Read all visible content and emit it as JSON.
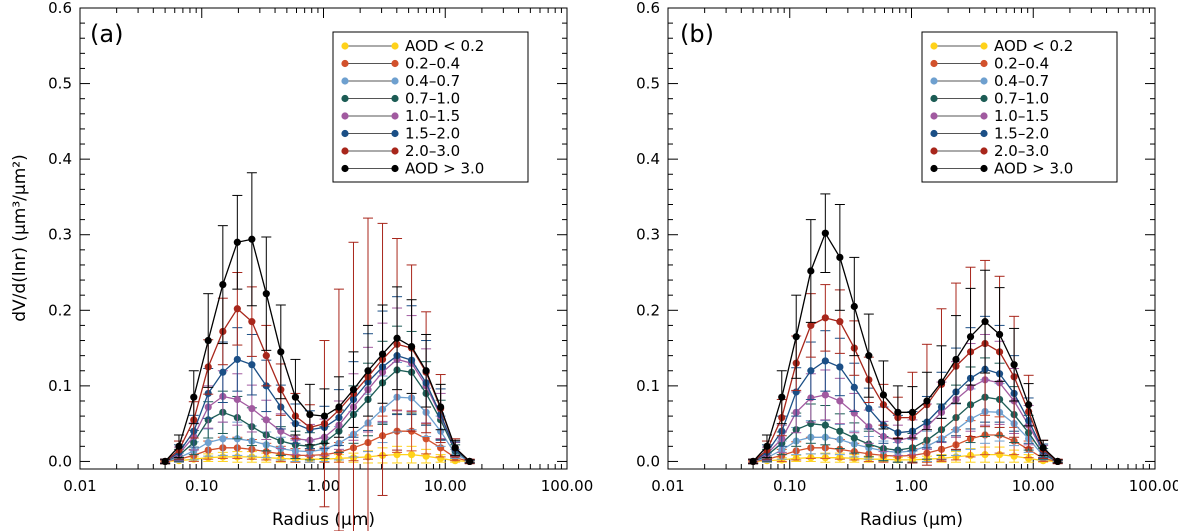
{
  "ylabel": "dV/d(lnr) (μm³/μm²)",
  "chart_data": [
    {
      "type": "line",
      "panel_label": "(a)",
      "xlabel": "Radius (μm)",
      "ylabel": "dV/d(lnr) (μm³/μm²)",
      "x_scale": "log",
      "xlim": [
        0.01,
        100
      ],
      "ylim": [
        -0.01,
        0.6
      ],
      "x_ticks": [
        "0.01",
        "0.10",
        "1.00",
        "10.00",
        "100.00"
      ],
      "y_ticks": [
        "0.0",
        "0.1",
        "0.2",
        "0.3",
        "0.4",
        "0.5",
        "0.6"
      ],
      "legend_position": "top-right",
      "x": [
        0.05,
        0.065,
        0.086,
        0.113,
        0.149,
        0.196,
        0.258,
        0.339,
        0.446,
        0.588,
        0.773,
        1.018,
        1.339,
        1.763,
        2.32,
        3.054,
        4.019,
        5.29,
        6.963,
        9.165,
        12.06,
        15.88
      ],
      "series": [
        {
          "name": "AOD < 0.2",
          "color": "#FFD21A",
          "values": [
            0.0,
            0.001,
            0.003,
            0.005,
            0.006,
            0.006,
            0.006,
            0.005,
            0.004,
            0.003,
            0.003,
            0.003,
            0.004,
            0.005,
            0.006,
            0.008,
            0.009,
            0.009,
            0.007,
            0.004,
            0.001,
            0.0
          ],
          "err": [
            0.001,
            0.002,
            0.003,
            0.005,
            0.006,
            0.007,
            0.007,
            0.006,
            0.005,
            0.004,
            0.004,
            0.004,
            0.005,
            0.006,
            0.008,
            0.01,
            0.011,
            0.011,
            0.009,
            0.005,
            0.002,
            0.001
          ]
        },
        {
          "name": "0.2–0.4",
          "color": "#D2512C",
          "values": [
            0.0,
            0.003,
            0.008,
            0.015,
            0.018,
            0.018,
            0.016,
            0.013,
            0.01,
            0.008,
            0.008,
            0.009,
            0.012,
            0.018,
            0.025,
            0.034,
            0.04,
            0.04,
            0.03,
            0.018,
            0.005,
            0.0
          ],
          "err": [
            0.001,
            0.004,
            0.008,
            0.012,
            0.014,
            0.014,
            0.013,
            0.011,
            0.01,
            0.009,
            0.009,
            0.01,
            0.013,
            0.017,
            0.022,
            0.026,
            0.028,
            0.026,
            0.02,
            0.012,
            0.004,
            0.001
          ]
        },
        {
          "name": "0.4–0.7",
          "color": "#6EA0CF",
          "values": [
            0.0,
            0.005,
            0.014,
            0.025,
            0.03,
            0.03,
            0.027,
            0.022,
            0.017,
            0.014,
            0.013,
            0.016,
            0.024,
            0.036,
            0.051,
            0.069,
            0.085,
            0.084,
            0.065,
            0.04,
            0.01,
            0.0
          ],
          "err": [
            0.002,
            0.006,
            0.012,
            0.018,
            0.022,
            0.022,
            0.02,
            0.017,
            0.015,
            0.014,
            0.014,
            0.016,
            0.022,
            0.03,
            0.038,
            0.044,
            0.046,
            0.042,
            0.032,
            0.02,
            0.006,
            0.001
          ]
        },
        {
          "name": "0.7–1.0",
          "color": "#1C5C55",
          "values": [
            0.0,
            0.008,
            0.025,
            0.055,
            0.065,
            0.058,
            0.046,
            0.035,
            0.027,
            0.022,
            0.02,
            0.025,
            0.04,
            0.062,
            0.082,
            0.104,
            0.121,
            0.118,
            0.09,
            0.055,
            0.014,
            0.0
          ],
          "err": [
            0.002,
            0.008,
            0.016,
            0.024,
            0.028,
            0.028,
            0.025,
            0.021,
            0.019,
            0.018,
            0.018,
            0.021,
            0.028,
            0.038,
            0.048,
            0.055,
            0.058,
            0.054,
            0.042,
            0.026,
            0.008,
            0.002
          ]
        },
        {
          "name": "1.0–1.5",
          "color": "#A15AA0",
          "values": [
            0.0,
            0.01,
            0.033,
            0.072,
            0.086,
            0.082,
            0.07,
            0.055,
            0.04,
            0.03,
            0.028,
            0.032,
            0.048,
            0.072,
            0.095,
            0.118,
            0.135,
            0.13,
            0.1,
            0.06,
            0.016,
            0.0
          ],
          "err": [
            0.002,
            0.009,
            0.018,
            0.028,
            0.034,
            0.034,
            0.031,
            0.026,
            0.023,
            0.021,
            0.021,
            0.024,
            0.032,
            0.044,
            0.056,
            0.065,
            0.068,
            0.063,
            0.049,
            0.03,
            0.009,
            0.002
          ]
        },
        {
          "name": "1.5–2.0",
          "color": "#1B4F86",
          "values": [
            0.0,
            0.012,
            0.04,
            0.09,
            0.118,
            0.135,
            0.128,
            0.1,
            0.072,
            0.05,
            0.042,
            0.045,
            0.058,
            0.082,
            0.105,
            0.125,
            0.14,
            0.134,
            0.104,
            0.062,
            0.016,
            0.0
          ],
          "err": [
            0.003,
            0.01,
            0.021,
            0.033,
            0.04,
            0.042,
            0.04,
            0.034,
            0.029,
            0.026,
            0.025,
            0.028,
            0.037,
            0.05,
            0.064,
            0.074,
            0.078,
            0.072,
            0.056,
            0.034,
            0.01,
            0.002
          ]
        },
        {
          "name": "2.0–3.0",
          "color": "#A8261B",
          "values": [
            0.0,
            0.015,
            0.055,
            0.125,
            0.172,
            0.202,
            0.185,
            0.14,
            0.095,
            0.06,
            0.045,
            0.05,
            0.068,
            0.09,
            0.112,
            0.135,
            0.155,
            0.15,
            0.118,
            0.07,
            0.018,
            0.0
          ],
          "err": [
            0.003,
            0.012,
            0.024,
            0.036,
            0.044,
            0.048,
            0.046,
            0.04,
            0.034,
            0.03,
            0.03,
            0.11,
            0.16,
            0.2,
            0.21,
            0.18,
            0.14,
            0.11,
            0.08,
            0.045,
            0.012,
            0.003
          ]
        },
        {
          "name": "AOD > 3.0",
          "color": "#000000",
          "values": [
            0.0,
            0.02,
            0.085,
            0.16,
            0.234,
            0.29,
            0.294,
            0.222,
            0.145,
            0.085,
            0.062,
            0.06,
            0.072,
            0.095,
            0.12,
            0.142,
            0.163,
            0.152,
            0.12,
            0.072,
            0.018,
            0.0
          ],
          "err": [
            0.003,
            0.015,
            0.035,
            0.062,
            0.078,
            0.062,
            0.088,
            0.075,
            0.062,
            0.05,
            0.04,
            0.036,
            0.04,
            0.05,
            0.06,
            0.065,
            0.068,
            0.062,
            0.048,
            0.03,
            0.01,
            0.002
          ]
        }
      ]
    },
    {
      "type": "line",
      "panel_label": "(b)",
      "xlabel": "Radius (μm)",
      "x_scale": "log",
      "xlim": [
        0.01,
        100
      ],
      "ylim": [
        -0.01,
        0.6
      ],
      "x_ticks": [
        "0.01",
        "0.10",
        "1.00",
        "10.00",
        "100.00"
      ],
      "y_ticks": [
        "0.0",
        "0.1",
        "0.2",
        "0.3",
        "0.4",
        "0.5",
        "0.6"
      ],
      "legend_position": "top-right",
      "x": [
        0.05,
        0.065,
        0.086,
        0.113,
        0.149,
        0.196,
        0.258,
        0.339,
        0.446,
        0.588,
        0.773,
        1.018,
        1.339,
        1.763,
        2.32,
        3.054,
        4.019,
        5.29,
        6.963,
        9.165,
        12.06,
        15.88
      ],
      "series": [
        {
          "name": "AOD < 0.2",
          "color": "#FFD21A",
          "values": [
            0.0,
            0.001,
            0.002,
            0.004,
            0.005,
            0.005,
            0.005,
            0.004,
            0.003,
            0.003,
            0.002,
            0.002,
            0.003,
            0.004,
            0.006,
            0.008,
            0.009,
            0.009,
            0.007,
            0.004,
            0.001,
            0.0
          ],
          "err": [
            0.001,
            0.002,
            0.003,
            0.004,
            0.005,
            0.006,
            0.006,
            0.005,
            0.004,
            0.003,
            0.003,
            0.003,
            0.004,
            0.005,
            0.007,
            0.009,
            0.01,
            0.01,
            0.008,
            0.005,
            0.002,
            0.001
          ]
        },
        {
          "name": "0.2–0.4",
          "color": "#D2512C",
          "values": [
            0.0,
            0.003,
            0.008,
            0.014,
            0.018,
            0.018,
            0.016,
            0.013,
            0.01,
            0.008,
            0.007,
            0.008,
            0.011,
            0.016,
            0.022,
            0.03,
            0.035,
            0.035,
            0.027,
            0.016,
            0.004,
            0.0
          ],
          "err": [
            0.001,
            0.004,
            0.008,
            0.012,
            0.014,
            0.014,
            0.013,
            0.011,
            0.01,
            0.009,
            0.008,
            0.009,
            0.012,
            0.016,
            0.02,
            0.024,
            0.026,
            0.024,
            0.018,
            0.011,
            0.004,
            0.001
          ]
        },
        {
          "name": "0.4–0.7",
          "color": "#6EA0CF",
          "values": [
            0.0,
            0.005,
            0.015,
            0.027,
            0.032,
            0.032,
            0.029,
            0.023,
            0.018,
            0.014,
            0.012,
            0.014,
            0.02,
            0.03,
            0.042,
            0.056,
            0.066,
            0.065,
            0.05,
            0.03,
            0.008,
            0.0
          ],
          "err": [
            0.002,
            0.006,
            0.012,
            0.018,
            0.022,
            0.022,
            0.02,
            0.017,
            0.015,
            0.013,
            0.013,
            0.015,
            0.02,
            0.027,
            0.034,
            0.04,
            0.042,
            0.038,
            0.029,
            0.018,
            0.006,
            0.001
          ]
        },
        {
          "name": "0.7–1.0",
          "color": "#1C5C55",
          "values": [
            0.0,
            0.008,
            0.024,
            0.042,
            0.05,
            0.048,
            0.04,
            0.031,
            0.023,
            0.017,
            0.015,
            0.018,
            0.028,
            0.042,
            0.058,
            0.075,
            0.085,
            0.082,
            0.062,
            0.038,
            0.01,
            0.0
          ],
          "err": [
            0.002,
            0.008,
            0.015,
            0.022,
            0.026,
            0.026,
            0.023,
            0.02,
            0.017,
            0.016,
            0.016,
            0.019,
            0.025,
            0.034,
            0.043,
            0.05,
            0.052,
            0.048,
            0.037,
            0.023,
            0.007,
            0.002
          ]
        },
        {
          "name": "1.0–1.5",
          "color": "#A15AA0",
          "values": [
            0.0,
            0.01,
            0.03,
            0.065,
            0.084,
            0.088,
            0.08,
            0.064,
            0.046,
            0.033,
            0.028,
            0.032,
            0.046,
            0.065,
            0.082,
            0.098,
            0.108,
            0.104,
            0.08,
            0.048,
            0.013,
            0.0
          ],
          "err": [
            0.002,
            0.009,
            0.018,
            0.027,
            0.032,
            0.033,
            0.03,
            0.026,
            0.022,
            0.02,
            0.02,
            0.023,
            0.03,
            0.04,
            0.05,
            0.058,
            0.06,
            0.055,
            0.043,
            0.026,
            0.008,
            0.002
          ]
        },
        {
          "name": "1.5–2.0",
          "color": "#1B4F86",
          "values": [
            0.0,
            0.012,
            0.04,
            0.092,
            0.12,
            0.133,
            0.125,
            0.098,
            0.07,
            0.048,
            0.038,
            0.04,
            0.052,
            0.072,
            0.092,
            0.11,
            0.122,
            0.116,
            0.09,
            0.054,
            0.014,
            0.0
          ],
          "err": [
            0.003,
            0.01,
            0.02,
            0.032,
            0.038,
            0.04,
            0.038,
            0.032,
            0.027,
            0.024,
            0.023,
            0.026,
            0.034,
            0.046,
            0.058,
            0.067,
            0.07,
            0.064,
            0.05,
            0.03,
            0.009,
            0.002
          ]
        },
        {
          "name": "2.0–3.0",
          "color": "#A8261B",
          "values": [
            0.0,
            0.015,
            0.058,
            0.13,
            0.18,
            0.19,
            0.185,
            0.15,
            0.108,
            0.075,
            0.058,
            0.058,
            0.075,
            0.102,
            0.126,
            0.145,
            0.156,
            0.145,
            0.112,
            0.066,
            0.016,
            0.0
          ],
          "err": [
            0.003,
            0.012,
            0.024,
            0.036,
            0.042,
            0.044,
            0.042,
            0.036,
            0.03,
            0.027,
            0.027,
            0.06,
            0.08,
            0.1,
            0.11,
            0.112,
            0.11,
            0.1,
            0.08,
            0.048,
            0.012,
            0.003
          ]
        },
        {
          "name": "AOD > 3.0",
          "color": "#000000",
          "values": [
            0.0,
            0.02,
            0.085,
            0.165,
            0.252,
            0.302,
            0.27,
            0.205,
            0.14,
            0.088,
            0.065,
            0.065,
            0.08,
            0.105,
            0.135,
            0.165,
            0.185,
            0.168,
            0.128,
            0.075,
            0.018,
            0.0
          ],
          "err": [
            0.003,
            0.015,
            0.035,
            0.055,
            0.068,
            0.052,
            0.07,
            0.065,
            0.055,
            0.045,
            0.035,
            0.034,
            0.038,
            0.048,
            0.058,
            0.064,
            0.068,
            0.062,
            0.048,
            0.028,
            0.01,
            0.002
          ]
        }
      ]
    }
  ]
}
